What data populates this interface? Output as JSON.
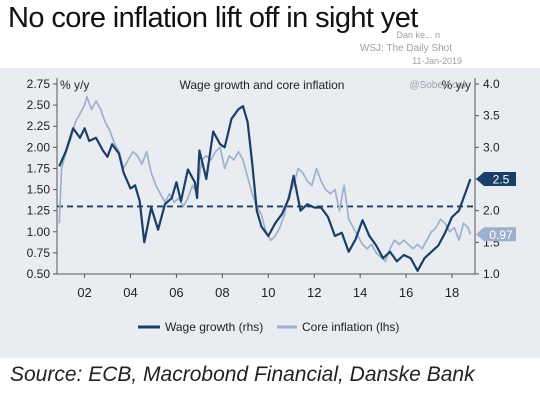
{
  "header": {
    "title": "No core inflation lift off in sight yet"
  },
  "watermark": {
    "line1": "Dan ke... n",
    "line2": "WSJ: The Daily Shot",
    "line3": "11-Jan-2019",
    "line4": "@SoberLook"
  },
  "footer": {
    "source": "Source: ECB, Macrobond Financial, Danske Bank"
  },
  "colors": {
    "wage": "#1b3e66",
    "core": "#9fb0cc",
    "plot_bg": "#e9edf2",
    "ref_line": "#1b3e66"
  },
  "chart_data": {
    "type": "line",
    "title": "Wage growth and core inflation",
    "x_ticks": [
      "02",
      "04",
      "06",
      "08",
      "10",
      "12",
      "14",
      "16",
      "18"
    ],
    "x_tick_values": [
      2002,
      2004,
      2006,
      2008,
      2010,
      2012,
      2014,
      2016,
      2018
    ],
    "xlim": [
      2000.8,
      2019.0
    ],
    "left_axis": {
      "label": "% y/y",
      "ylim": [
        0.5,
        2.75
      ],
      "ticks": [
        "2.75",
        "2.50",
        "2.25",
        "2.00",
        "1.75",
        "1.50",
        "1.25",
        "1.00",
        "0.75",
        "0.50"
      ],
      "tick_values": [
        2.75,
        2.5,
        2.25,
        2.0,
        1.75,
        1.5,
        1.25,
        1.0,
        0.75,
        0.5
      ]
    },
    "right_axis": {
      "label": "% y/y",
      "ylim": [
        1.0,
        4.0
      ],
      "ticks": [
        "4.0",
        "3.5",
        "3.0",
        "2.5",
        "2.0",
        "1.5",
        "1.0"
      ],
      "tick_values": [
        4.0,
        3.5,
        3.0,
        2.5,
        2.0,
        1.5,
        1.0
      ]
    },
    "reference_line": {
      "value": 1.3,
      "axis": "left",
      "style": "dashed"
    },
    "legend_position": "bottom-center",
    "series": [
      {
        "name": "Wage growth (rhs)",
        "axis": "right",
        "end_label": "2.5",
        "points": [
          [
            2000.9,
            2.7
          ],
          [
            2001.2,
            2.95
          ],
          [
            2001.5,
            3.3
          ],
          [
            2001.8,
            3.15
          ],
          [
            2002.0,
            3.3
          ],
          [
            2002.2,
            3.1
          ],
          [
            2002.5,
            3.15
          ],
          [
            2002.8,
            2.95
          ],
          [
            2003.0,
            2.85
          ],
          [
            2003.2,
            3.05
          ],
          [
            2003.5,
            2.9
          ],
          [
            2003.7,
            2.6
          ],
          [
            2004.0,
            2.35
          ],
          [
            2004.2,
            2.4
          ],
          [
            2004.4,
            2.15
          ],
          [
            2004.6,
            1.5
          ],
          [
            2004.9,
            2.05
          ],
          [
            2005.2,
            1.7
          ],
          [
            2005.5,
            2.1
          ],
          [
            2005.8,
            2.2
          ],
          [
            2006.0,
            2.45
          ],
          [
            2006.2,
            2.15
          ],
          [
            2006.5,
            2.65
          ],
          [
            2006.8,
            2.45
          ],
          [
            2006.9,
            2.2
          ],
          [
            2007.0,
            2.95
          ],
          [
            2007.3,
            2.5
          ],
          [
            2007.6,
            3.25
          ],
          [
            2007.9,
            3.05
          ],
          [
            2008.1,
            3.0
          ],
          [
            2008.4,
            3.45
          ],
          [
            2008.7,
            3.6
          ],
          [
            2008.9,
            3.65
          ],
          [
            2009.1,
            3.4
          ],
          [
            2009.3,
            2.75
          ],
          [
            2009.5,
            2.0
          ],
          [
            2009.7,
            1.75
          ],
          [
            2010.0,
            1.6
          ],
          [
            2010.3,
            1.8
          ],
          [
            2010.6,
            1.95
          ],
          [
            2010.9,
            2.2
          ],
          [
            2011.1,
            2.55
          ],
          [
            2011.4,
            2.0
          ],
          [
            2011.7,
            2.1
          ],
          [
            2012.0,
            2.05
          ],
          [
            2012.3,
            2.05
          ],
          [
            2012.6,
            1.9
          ],
          [
            2012.9,
            1.6
          ],
          [
            2013.2,
            1.65
          ],
          [
            2013.5,
            1.35
          ],
          [
            2013.8,
            1.55
          ],
          [
            2014.1,
            1.85
          ],
          [
            2014.4,
            1.6
          ],
          [
            2014.7,
            1.45
          ],
          [
            2015.0,
            1.25
          ],
          [
            2015.3,
            1.35
          ],
          [
            2015.6,
            1.2
          ],
          [
            2015.9,
            1.3
          ],
          [
            2016.2,
            1.25
          ],
          [
            2016.5,
            1.05
          ],
          [
            2016.8,
            1.25
          ],
          [
            2017.1,
            1.35
          ],
          [
            2017.4,
            1.45
          ],
          [
            2017.7,
            1.65
          ],
          [
            2018.0,
            1.9
          ],
          [
            2018.3,
            2.0
          ],
          [
            2018.6,
            2.3
          ],
          [
            2018.8,
            2.5
          ]
        ]
      },
      {
        "name": "Core inflation (lhs)",
        "axis": "left",
        "end_label": "0.97",
        "points": [
          [
            2000.9,
            1.1
          ],
          [
            2001.0,
            1.75
          ],
          [
            2001.2,
            1.95
          ],
          [
            2001.4,
            2.1
          ],
          [
            2001.6,
            2.3
          ],
          [
            2001.8,
            2.4
          ],
          [
            2002.0,
            2.5
          ],
          [
            2002.1,
            2.6
          ],
          [
            2002.3,
            2.45
          ],
          [
            2002.5,
            2.55
          ],
          [
            2002.7,
            2.45
          ],
          [
            2002.9,
            2.3
          ],
          [
            2003.1,
            2.2
          ],
          [
            2003.3,
            2.05
          ],
          [
            2003.5,
            1.95
          ],
          [
            2003.7,
            1.75
          ],
          [
            2003.9,
            1.85
          ],
          [
            2004.1,
            1.95
          ],
          [
            2004.3,
            1.9
          ],
          [
            2004.5,
            1.8
          ],
          [
            2004.7,
            1.95
          ],
          [
            2004.9,
            1.7
          ],
          [
            2005.1,
            1.55
          ],
          [
            2005.3,
            1.45
          ],
          [
            2005.5,
            1.35
          ],
          [
            2005.7,
            1.45
          ],
          [
            2005.9,
            1.35
          ],
          [
            2006.1,
            1.4
          ],
          [
            2006.3,
            1.3
          ],
          [
            2006.5,
            1.4
          ],
          [
            2006.7,
            1.55
          ],
          [
            2006.9,
            1.45
          ],
          [
            2007.1,
            1.85
          ],
          [
            2007.3,
            1.9
          ],
          [
            2007.5,
            1.85
          ],
          [
            2007.7,
            1.95
          ],
          [
            2007.9,
            2.0
          ],
          [
            2008.1,
            1.75
          ],
          [
            2008.3,
            1.9
          ],
          [
            2008.5,
            1.85
          ],
          [
            2008.7,
            1.95
          ],
          [
            2008.9,
            1.85
          ],
          [
            2009.1,
            1.65
          ],
          [
            2009.3,
            1.45
          ],
          [
            2009.5,
            1.3
          ],
          [
            2009.7,
            1.2
          ],
          [
            2009.9,
            1.0
          ],
          [
            2010.1,
            0.9
          ],
          [
            2010.3,
            0.95
          ],
          [
            2010.5,
            1.05
          ],
          [
            2010.7,
            1.2
          ],
          [
            2010.9,
            1.45
          ],
          [
            2011.1,
            1.55
          ],
          [
            2011.3,
            1.75
          ],
          [
            2011.5,
            1.7
          ],
          [
            2011.7,
            1.6
          ],
          [
            2011.9,
            1.55
          ],
          [
            2012.1,
            1.75
          ],
          [
            2012.3,
            1.6
          ],
          [
            2012.5,
            1.5
          ],
          [
            2012.7,
            1.45
          ],
          [
            2012.9,
            1.5
          ],
          [
            2013.1,
            1.25
          ],
          [
            2013.3,
            1.55
          ],
          [
            2013.5,
            1.15
          ],
          [
            2013.7,
            1.05
          ],
          [
            2013.9,
            0.95
          ],
          [
            2014.1,
            0.85
          ],
          [
            2014.3,
            0.8
          ],
          [
            2014.5,
            0.85
          ],
          [
            2014.7,
            0.75
          ],
          [
            2014.9,
            0.7
          ],
          [
            2015.1,
            0.65
          ],
          [
            2015.3,
            0.8
          ],
          [
            2015.5,
            0.9
          ],
          [
            2015.7,
            0.85
          ],
          [
            2015.9,
            0.9
          ],
          [
            2016.1,
            0.85
          ],
          [
            2016.3,
            0.8
          ],
          [
            2016.5,
            0.85
          ],
          [
            2016.7,
            0.8
          ],
          [
            2016.9,
            0.9
          ],
          [
            2017.1,
            1.0
          ],
          [
            2017.3,
            1.05
          ],
          [
            2017.5,
            1.15
          ],
          [
            2017.7,
            1.1
          ],
          [
            2017.9,
            1.0
          ],
          [
            2018.1,
            1.05
          ],
          [
            2018.3,
            0.9
          ],
          [
            2018.5,
            1.1
          ],
          [
            2018.7,
            1.05
          ],
          [
            2018.8,
            0.97
          ]
        ]
      }
    ]
  }
}
